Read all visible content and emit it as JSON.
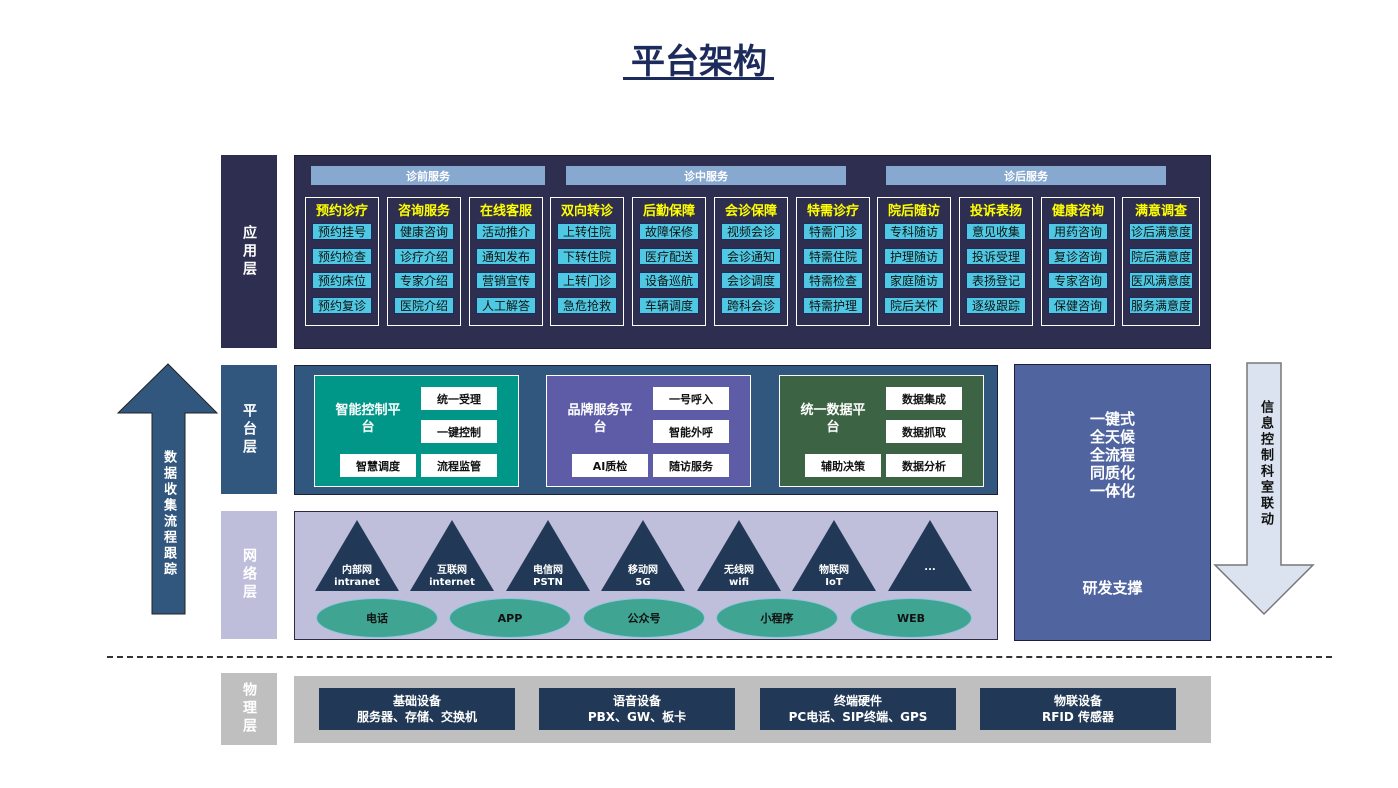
{
  "title": "平台架构",
  "layers": {
    "app": "应用层",
    "platform": "平台层",
    "network": "网络层",
    "physical": "物理层"
  },
  "app": {
    "sections": [
      "诊前服务",
      "诊中服务",
      "诊后服务"
    ],
    "columns": [
      {
        "title": "预约诊疗",
        "items": [
          "预约挂号",
          "预约检查",
          "预约床位",
          "预约复诊"
        ]
      },
      {
        "title": "咨询服务",
        "items": [
          "健康咨询",
          "诊疗介绍",
          "专家介绍",
          "医院介绍"
        ]
      },
      {
        "title": "在线客服",
        "items": [
          "活动推介",
          "通知发布",
          "营销宣传",
          "人工解答"
        ]
      },
      {
        "title": "双向转诊",
        "items": [
          "上转住院",
          "下转住院",
          "上转门诊",
          "急危抢救"
        ]
      },
      {
        "title": "后勤保障",
        "items": [
          "故障保修",
          "医疗配送",
          "设备巡航",
          "车辆调度"
        ]
      },
      {
        "title": "会诊保障",
        "items": [
          "视频会诊",
          "会诊通知",
          "会诊调度",
          "跨科会诊"
        ]
      },
      {
        "title": "特需诊疗",
        "items": [
          "特需门诊",
          "特需住院",
          "特需检查",
          "特需护理"
        ]
      },
      {
        "title": "院后随访",
        "items": [
          "专科随访",
          "护理随访",
          "家庭随访",
          "院后关怀"
        ]
      },
      {
        "title": "投诉表扬",
        "items": [
          "意见收集",
          "投诉受理",
          "表扬登记",
          "逐级跟踪"
        ]
      },
      {
        "title": "健康咨询",
        "items": [
          "用药咨询",
          "复诊咨询",
          "专家咨询",
          "保健咨询"
        ]
      },
      {
        "title": "满意调查",
        "items": [
          "诊后满意度",
          "院后满意度",
          "医风满意度",
          "服务满意度"
        ]
      }
    ]
  },
  "platform": {
    "boxes": [
      {
        "name": "智能控制平台",
        "color": "#009688",
        "items": [
          "统一受理",
          "一键控制",
          "智慧调度",
          "流程监管"
        ]
      },
      {
        "name": "品牌服务平台",
        "color": "#5e5ca6",
        "items": [
          "一号呼入",
          "智能外呼",
          "AI质检",
          "随访服务"
        ]
      },
      {
        "name": "统一数据平台",
        "color": "#3c6444",
        "items": [
          "数据集成",
          "数据抓取",
          "辅助决策",
          "数据分析"
        ]
      }
    ]
  },
  "network": {
    "nets": [
      {
        "cn": "内部网",
        "en": "intranet"
      },
      {
        "cn": "互联网",
        "en": "internet"
      },
      {
        "cn": "电信网",
        "en": "PSTN"
      },
      {
        "cn": "移动网",
        "en": "5G"
      },
      {
        "cn": "无线网",
        "en": "wifi"
      },
      {
        "cn": "物联网",
        "en": "IoT"
      },
      {
        "cn": "...",
        "en": ""
      }
    ],
    "channels": [
      "电话",
      "APP",
      "公众号",
      "小程序",
      "WEB"
    ]
  },
  "side": {
    "features": [
      "一键式",
      "全天候",
      "全流程",
      "同质化",
      "一体化"
    ],
    "support": "研发支撑",
    "up_arrow": "数据收集流程跟踪",
    "down_arrow": "信息控制科室联动"
  },
  "physical": [
    {
      "title": "基础设备",
      "desc": "服务器、存储、交换机"
    },
    {
      "title": "语音设备",
      "desc": "PBX、GW、板卡"
    },
    {
      "title": "终端硬件",
      "desc": "PC电话、SIP终端、GPS"
    },
    {
      "title": "物联设备",
      "desc": "RFID 传感器"
    }
  ]
}
